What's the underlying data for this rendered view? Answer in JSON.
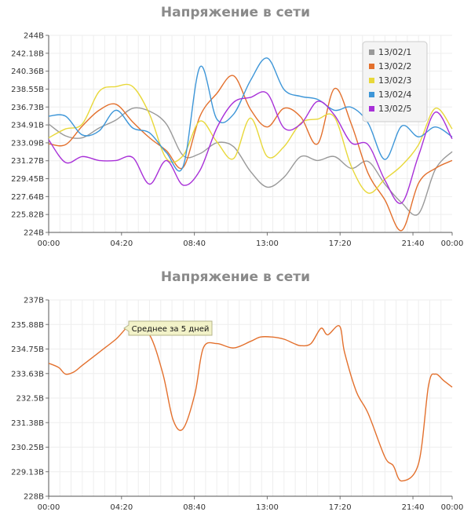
{
  "chart_data": [
    {
      "type": "line",
      "title": "Напряжение в сети",
      "ylim": [
        224,
        244
      ],
      "y_ticks": [
        "244В",
        "242.18В",
        "240.36В",
        "238.55В",
        "236.73В",
        "234.91В",
        "233.09В",
        "231.27В",
        "229.45В",
        "227.64В",
        "225.82В",
        "224В"
      ],
      "x_ticks": [
        "00:00",
        "04:20",
        "08:40",
        "13:00",
        "17:20",
        "21:40",
        "00:00"
      ],
      "x_tick_hours": [
        0,
        4.333,
        8.667,
        13,
        17.333,
        21.667,
        24
      ],
      "grid": true,
      "legend_position": "top-right",
      "x": [
        0,
        1,
        2,
        3,
        4,
        5,
        6,
        7,
        8,
        9,
        10,
        11,
        12,
        13,
        14,
        15,
        16,
        17,
        18,
        19,
        20,
        21,
        22,
        23,
        24
      ],
      "series": [
        {
          "name": "13/02/1",
          "color": "#999999",
          "values": [
            235.0,
            233.8,
            233.6,
            234.6,
            235.4,
            236.6,
            236.3,
            235.0,
            231.8,
            232.0,
            233.1,
            232.7,
            230.2,
            228.6,
            229.6,
            231.7,
            231.3,
            231.7,
            230.5,
            231.2,
            228.9,
            227.0,
            225.9,
            230.4,
            232.2
          ]
        },
        {
          "name": "13/02/2",
          "color": "#e3702d",
          "values": [
            233.0,
            232.9,
            234.8,
            236.4,
            237.0,
            235.2,
            233.6,
            232.3,
            230.6,
            235.8,
            238.1,
            239.9,
            236.5,
            234.7,
            236.6,
            235.7,
            233.0,
            238.6,
            235.0,
            230.0,
            227.3,
            224.2,
            229.0,
            230.5,
            231.3
          ]
        },
        {
          "name": "13/02/3",
          "color": "#e8d83a",
          "values": [
            233.6,
            234.5,
            235.0,
            238.3,
            238.8,
            238.8,
            236.0,
            231.5,
            231.8,
            235.3,
            233.2,
            231.5,
            235.6,
            231.7,
            232.7,
            235.1,
            235.5,
            235.7,
            230.7,
            228.0,
            229.4,
            230.8,
            232.9,
            236.6,
            234.5
          ]
        },
        {
          "name": "13/02/4",
          "color": "#3d96d8",
          "values": [
            235.8,
            235.8,
            233.9,
            234.3,
            236.4,
            234.6,
            234.1,
            232.1,
            230.7,
            240.8,
            235.5,
            236.0,
            239.4,
            241.7,
            238.5,
            237.8,
            237.5,
            236.4,
            236.7,
            235.1,
            231.4,
            234.8,
            233.7,
            234.7,
            233.7
          ]
        },
        {
          "name": "13/02/5",
          "color": "#a830d8",
          "values": [
            233.4,
            231.1,
            231.7,
            231.3,
            231.3,
            231.6,
            228.9,
            231.3,
            228.8,
            230.3,
            234.6,
            237.2,
            237.7,
            238.1,
            234.6,
            235.0,
            237.3,
            235.9,
            233.1,
            232.9,
            229.3,
            227.0,
            231.8,
            236.2,
            233.5
          ]
        }
      ]
    },
    {
      "type": "line",
      "title": "Напряжение в сети",
      "ylim": [
        228,
        237
      ],
      "y_ticks": [
        "237В",
        "235.88В",
        "234.75В",
        "233.63В",
        "232.5В",
        "231.38В",
        "230.25В",
        "229.13В",
        "228В"
      ],
      "x_ticks": [
        "00:00",
        "04:20",
        "08:40",
        "13:00",
        "17:20",
        "21:40",
        "00:00"
      ],
      "x_tick_hours": [
        0,
        4.333,
        8.667,
        13,
        17.333,
        21.667,
        24
      ],
      "grid": true,
      "annotation": "Среднее за 5 дней",
      "x": [
        0,
        0.6,
        1,
        1.5,
        2,
        3,
        4,
        5,
        6,
        6.8,
        7.4,
        8,
        8.7,
        9.2,
        10,
        11,
        12,
        12.6,
        13.3,
        14,
        14.6,
        15,
        15.6,
        16.2,
        16.6,
        17.3,
        17.6,
        18.3,
        19,
        20,
        20.5,
        21,
        22,
        22.6,
        23,
        23.5,
        24
      ],
      "series": [
        {
          "name": "",
          "color": "#e3702d",
          "values": [
            234.1,
            233.9,
            233.6,
            233.7,
            234.0,
            234.6,
            235.2,
            235.9,
            235.4,
            233.6,
            231.5,
            231.1,
            232.7,
            234.8,
            235.0,
            234.8,
            235.1,
            235.3,
            235.3,
            235.2,
            235.0,
            234.9,
            235.0,
            235.7,
            235.4,
            235.8,
            234.6,
            232.8,
            231.8,
            229.8,
            229.4,
            228.7,
            229.5,
            233.1,
            233.6,
            233.3,
            233.0
          ]
        }
      ]
    }
  ]
}
